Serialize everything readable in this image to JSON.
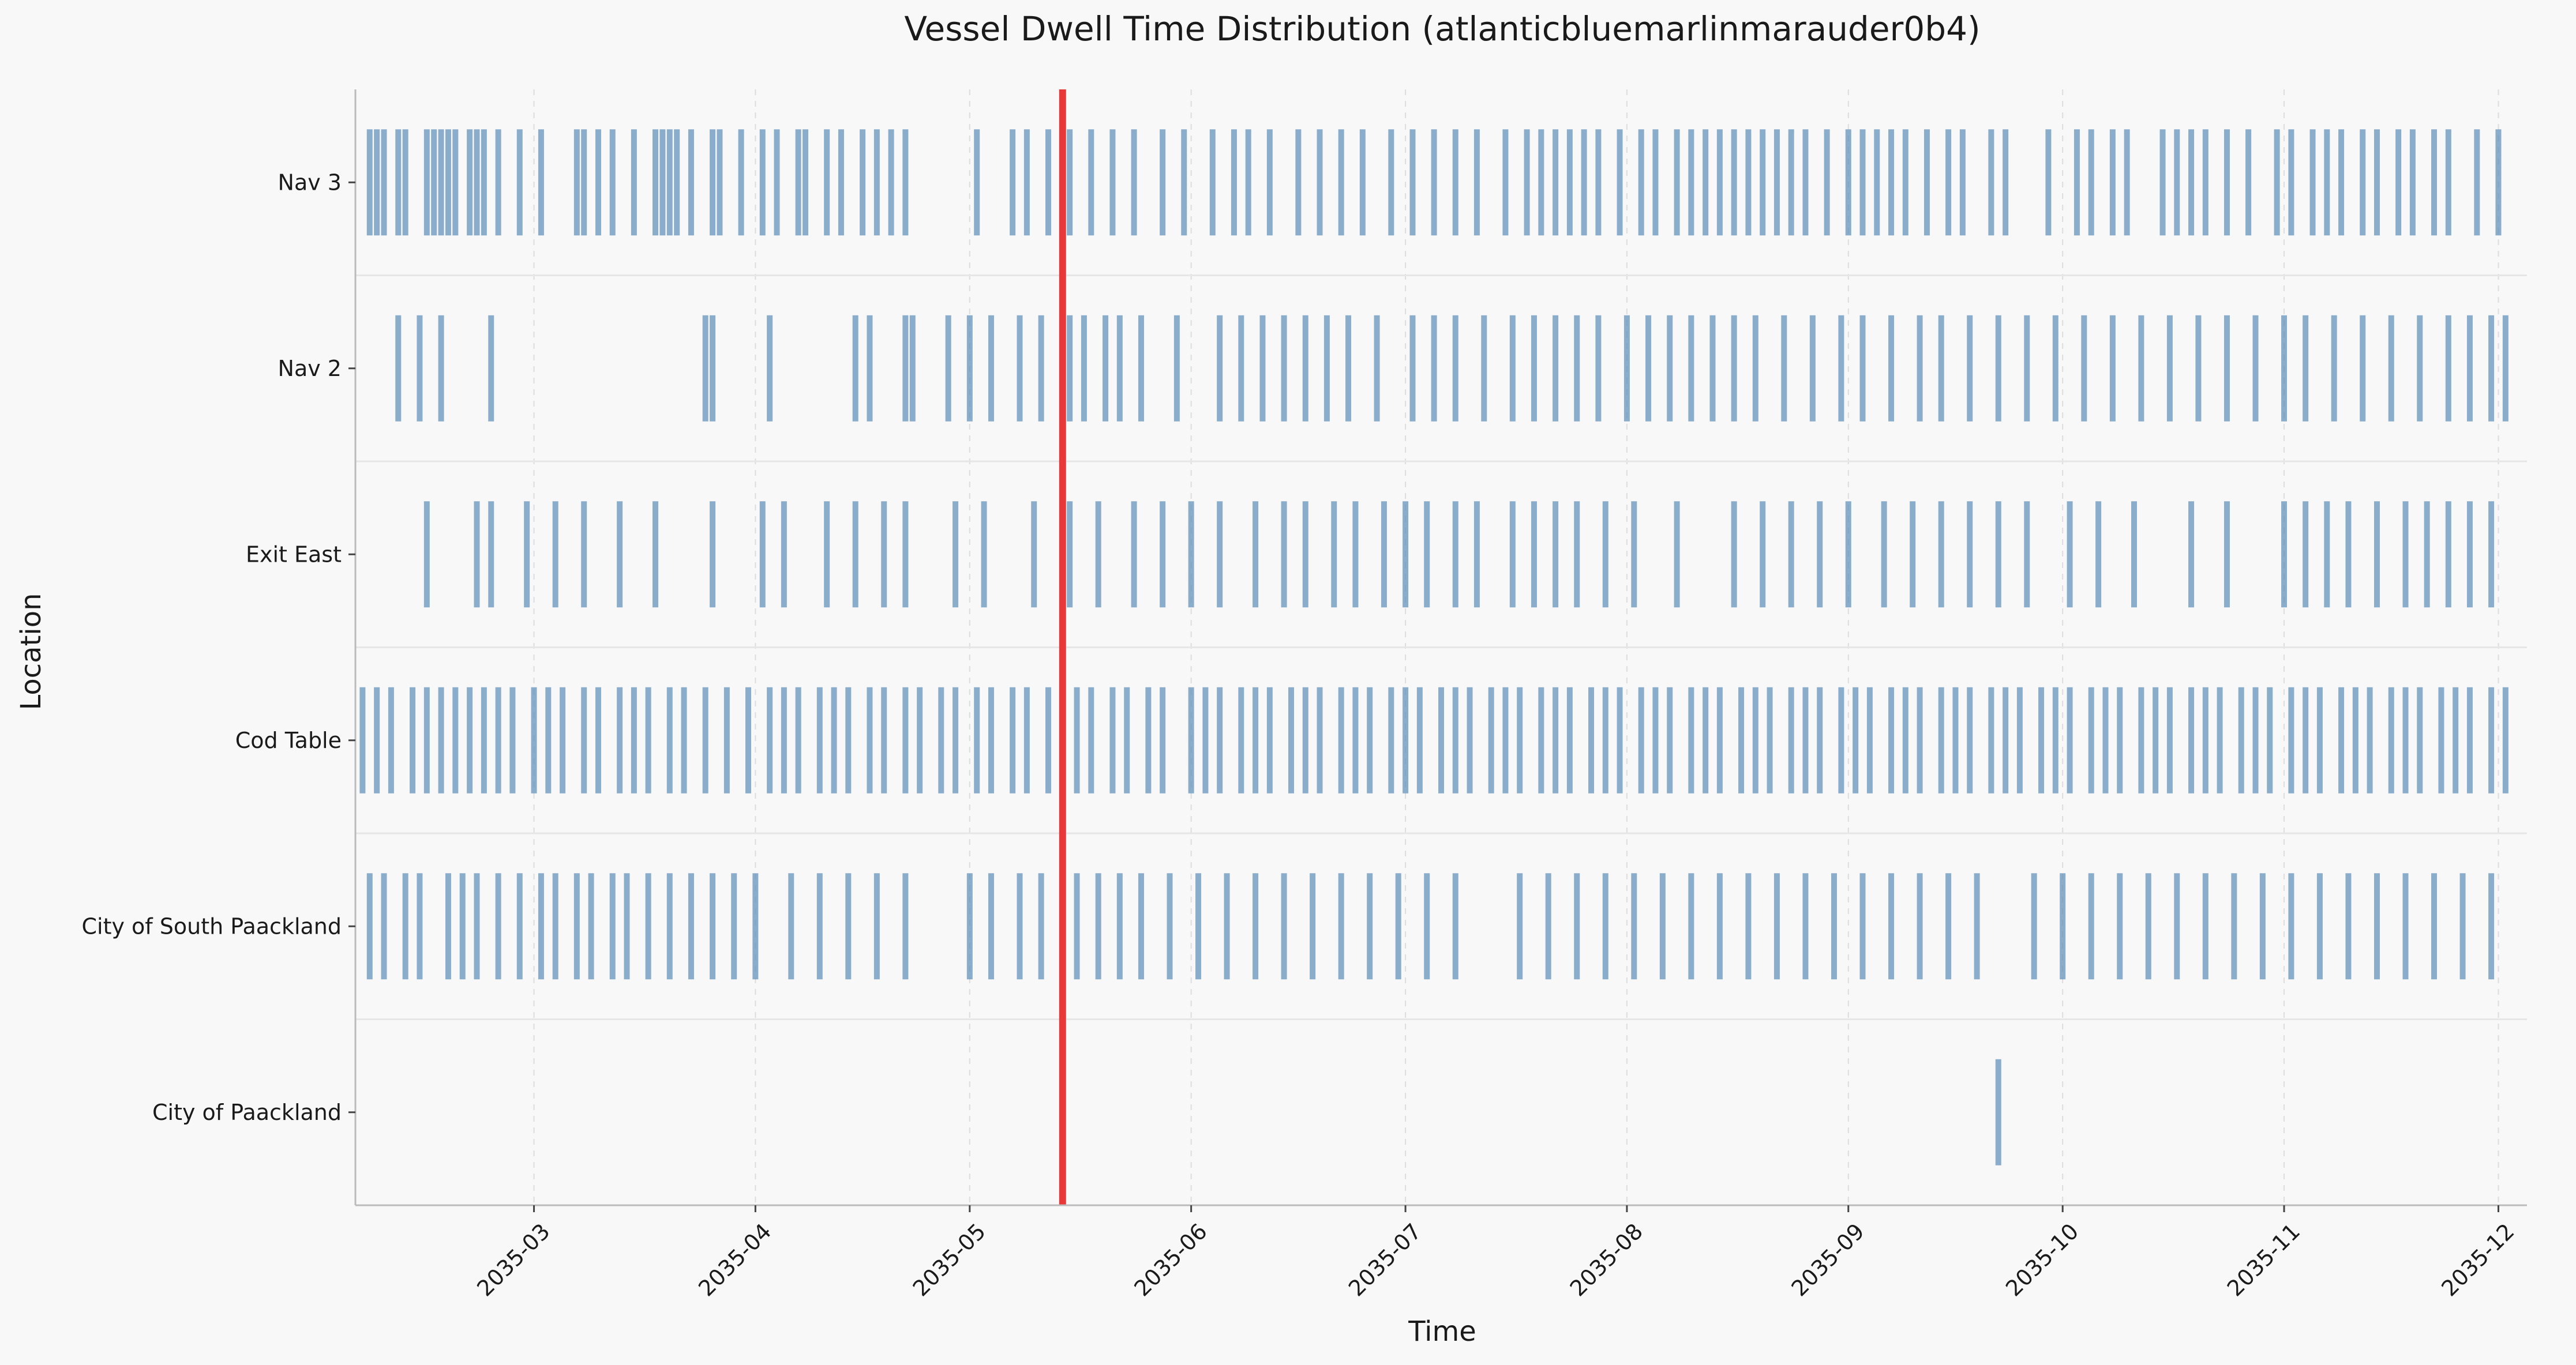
{
  "chart_data": {
    "type": "event-strip",
    "title": "Vessel Dwell Time Distribution (atlanticbluemarlinmarauder0b4)",
    "xlabel": "Time",
    "ylabel": "Location",
    "x_range": [
      "2035-02-04",
      "2035-12-05"
    ],
    "x_ticks": [
      "2035-03",
      "2035-04",
      "2035-05",
      "2035-06",
      "2035-07",
      "2035-08",
      "2035-09",
      "2035-10",
      "2035-11",
      "2035-12"
    ],
    "categories": [
      "Nav 3",
      "Nav 2",
      "Exit East",
      "Cod Table",
      "City of South Paackland",
      "City of Paackland"
    ],
    "marker_date": "2035-05-14",
    "colors": {
      "event": "#5b8db8",
      "marker": "#e8393a",
      "grid": "#dddddd",
      "background": "#f8f8f8"
    },
    "grid": true,
    "series": [
      {
        "category": "Nav 3",
        "events": [
          "2035-02-06",
          "2035-02-07",
          "2035-02-08",
          "2035-02-10",
          "2035-02-11",
          "2035-02-14",
          "2035-02-15",
          "2035-02-16",
          "2035-02-17",
          "2035-02-18",
          "2035-02-20",
          "2035-02-21",
          "2035-02-22",
          "2035-02-24",
          "2035-02-27",
          "2035-03-02",
          "2035-03-07",
          "2035-03-08",
          "2035-03-10",
          "2035-03-12",
          "2035-03-15",
          "2035-03-18",
          "2035-03-19",
          "2035-03-20",
          "2035-03-21",
          "2035-03-23",
          "2035-03-26",
          "2035-03-27",
          "2035-03-30",
          "2035-04-02",
          "2035-04-04",
          "2035-04-07",
          "2035-04-08",
          "2035-04-11",
          "2035-04-13",
          "2035-04-16",
          "2035-04-18",
          "2035-04-20",
          "2035-04-22",
          "2035-05-02",
          "2035-05-07",
          "2035-05-09",
          "2035-05-12",
          "2035-05-15",
          "2035-05-18",
          "2035-05-21",
          "2035-05-24",
          "2035-05-28",
          "2035-05-31",
          "2035-06-04",
          "2035-06-07",
          "2035-06-09",
          "2035-06-12",
          "2035-06-16",
          "2035-06-19",
          "2035-06-22",
          "2035-06-25",
          "2035-06-29",
          "2035-07-02",
          "2035-07-05",
          "2035-07-08",
          "2035-07-11",
          "2035-07-15",
          "2035-07-18",
          "2035-07-20",
          "2035-07-22",
          "2035-07-24",
          "2035-07-26",
          "2035-07-28",
          "2035-07-31",
          "2035-08-03",
          "2035-08-05",
          "2035-08-08",
          "2035-08-10",
          "2035-08-12",
          "2035-08-14",
          "2035-08-16",
          "2035-08-18",
          "2035-08-20",
          "2035-08-22",
          "2035-08-24",
          "2035-08-26",
          "2035-08-29",
          "2035-09-01",
          "2035-09-03",
          "2035-09-05",
          "2035-09-07",
          "2035-09-09",
          "2035-09-12",
          "2035-09-15",
          "2035-09-17",
          "2035-09-21",
          "2035-09-23",
          "2035-09-29",
          "2035-10-03",
          "2035-10-05",
          "2035-10-08",
          "2035-10-10",
          "2035-10-15",
          "2035-10-17",
          "2035-10-19",
          "2035-10-21",
          "2035-10-24",
          "2035-10-27",
          "2035-10-31",
          "2035-11-02",
          "2035-11-05",
          "2035-11-07",
          "2035-11-09",
          "2035-11-12",
          "2035-11-14",
          "2035-11-17",
          "2035-11-19",
          "2035-11-22",
          "2035-11-24",
          "2035-11-28",
          "2035-12-01"
        ]
      },
      {
        "category": "Nav 2",
        "events": [
          "2035-02-10",
          "2035-02-13",
          "2035-02-16",
          "2035-02-23",
          "2035-03-25",
          "2035-03-26",
          "2035-04-03",
          "2035-04-15",
          "2035-04-17",
          "2035-04-22",
          "2035-04-23",
          "2035-04-28",
          "2035-05-01",
          "2035-05-04",
          "2035-05-08",
          "2035-05-11",
          "2035-05-15",
          "2035-05-17",
          "2035-05-20",
          "2035-05-22",
          "2035-05-25",
          "2035-05-30",
          "2035-06-05",
          "2035-06-08",
          "2035-06-11",
          "2035-06-14",
          "2035-06-17",
          "2035-06-20",
          "2035-06-23",
          "2035-06-27",
          "2035-07-02",
          "2035-07-05",
          "2035-07-08",
          "2035-07-12",
          "2035-07-16",
          "2035-07-19",
          "2035-07-22",
          "2035-07-25",
          "2035-07-28",
          "2035-08-01",
          "2035-08-04",
          "2035-08-07",
          "2035-08-10",
          "2035-08-13",
          "2035-08-16",
          "2035-08-19",
          "2035-08-23",
          "2035-08-27",
          "2035-08-31",
          "2035-09-03",
          "2035-09-07",
          "2035-09-11",
          "2035-09-14",
          "2035-09-18",
          "2035-09-22",
          "2035-09-26",
          "2035-09-30",
          "2035-10-04",
          "2035-10-08",
          "2035-10-12",
          "2035-10-16",
          "2035-10-20",
          "2035-10-24",
          "2035-10-28",
          "2035-11-01",
          "2035-11-04",
          "2035-11-08",
          "2035-11-12",
          "2035-11-16",
          "2035-11-20",
          "2035-11-24",
          "2035-11-27",
          "2035-11-30",
          "2035-12-02"
        ]
      },
      {
        "category": "Exit East",
        "events": [
          "2035-02-14",
          "2035-02-21",
          "2035-02-23",
          "2035-02-28",
          "2035-03-04",
          "2035-03-08",
          "2035-03-13",
          "2035-03-18",
          "2035-03-26",
          "2035-04-02",
          "2035-04-05",
          "2035-04-11",
          "2035-04-15",
          "2035-04-19",
          "2035-04-22",
          "2035-04-29",
          "2035-05-03",
          "2035-05-10",
          "2035-05-15",
          "2035-05-19",
          "2035-05-24",
          "2035-05-28",
          "2035-06-01",
          "2035-06-05",
          "2035-06-10",
          "2035-06-14",
          "2035-06-17",
          "2035-06-21",
          "2035-06-24",
          "2035-06-28",
          "2035-07-01",
          "2035-07-04",
          "2035-07-08",
          "2035-07-11",
          "2035-07-16",
          "2035-07-19",
          "2035-07-22",
          "2035-07-25",
          "2035-07-29",
          "2035-08-02",
          "2035-08-08",
          "2035-08-16",
          "2035-08-20",
          "2035-08-24",
          "2035-08-28",
          "2035-09-01",
          "2035-09-06",
          "2035-09-10",
          "2035-09-14",
          "2035-09-18",
          "2035-09-22",
          "2035-09-26",
          "2035-10-02",
          "2035-10-06",
          "2035-10-11",
          "2035-10-19",
          "2035-10-24",
          "2035-11-01",
          "2035-11-04",
          "2035-11-07",
          "2035-11-10",
          "2035-11-14",
          "2035-11-18",
          "2035-11-21",
          "2035-11-24",
          "2035-11-27",
          "2035-11-30"
        ]
      },
      {
        "category": "Cod Table",
        "events": [
          "2035-02-05",
          "2035-02-07",
          "2035-02-09",
          "2035-02-12",
          "2035-02-14",
          "2035-02-16",
          "2035-02-18",
          "2035-02-20",
          "2035-02-22",
          "2035-02-24",
          "2035-02-26",
          "2035-03-01",
          "2035-03-03",
          "2035-03-05",
          "2035-03-08",
          "2035-03-10",
          "2035-03-13",
          "2035-03-15",
          "2035-03-17",
          "2035-03-20",
          "2035-03-22",
          "2035-03-25",
          "2035-03-28",
          "2035-03-31",
          "2035-04-03",
          "2035-04-05",
          "2035-04-07",
          "2035-04-10",
          "2035-04-12",
          "2035-04-14",
          "2035-04-17",
          "2035-04-19",
          "2035-04-22",
          "2035-04-24",
          "2035-04-27",
          "2035-04-29",
          "2035-05-02",
          "2035-05-04",
          "2035-05-07",
          "2035-05-09",
          "2035-05-12",
          "2035-05-16",
          "2035-05-18",
          "2035-05-21",
          "2035-05-23",
          "2035-05-26",
          "2035-05-28",
          "2035-06-01",
          "2035-06-03",
          "2035-06-05",
          "2035-06-08",
          "2035-06-10",
          "2035-06-12",
          "2035-06-15",
          "2035-06-17",
          "2035-06-19",
          "2035-06-22",
          "2035-06-24",
          "2035-06-26",
          "2035-06-29",
          "2035-07-01",
          "2035-07-03",
          "2035-07-06",
          "2035-07-08",
          "2035-07-10",
          "2035-07-13",
          "2035-07-15",
          "2035-07-17",
          "2035-07-20",
          "2035-07-22",
          "2035-07-24",
          "2035-07-27",
          "2035-07-29",
          "2035-07-31",
          "2035-08-03",
          "2035-08-05",
          "2035-08-07",
          "2035-08-10",
          "2035-08-12",
          "2035-08-14",
          "2035-08-17",
          "2035-08-19",
          "2035-08-21",
          "2035-08-24",
          "2035-08-26",
          "2035-08-28",
          "2035-08-31",
          "2035-09-02",
          "2035-09-04",
          "2035-09-07",
          "2035-09-09",
          "2035-09-11",
          "2035-09-14",
          "2035-09-16",
          "2035-09-18",
          "2035-09-21",
          "2035-09-23",
          "2035-09-25",
          "2035-09-28",
          "2035-09-30",
          "2035-10-02",
          "2035-10-05",
          "2035-10-07",
          "2035-10-09",
          "2035-10-12",
          "2035-10-14",
          "2035-10-16",
          "2035-10-19",
          "2035-10-21",
          "2035-10-23",
          "2035-10-26",
          "2035-10-28",
          "2035-10-30",
          "2035-11-02",
          "2035-11-04",
          "2035-11-06",
          "2035-11-09",
          "2035-11-11",
          "2035-11-13",
          "2035-11-16",
          "2035-11-18",
          "2035-11-20",
          "2035-11-23",
          "2035-11-25",
          "2035-11-27",
          "2035-11-30",
          "2035-12-02"
        ]
      },
      {
        "category": "City of South Paackland",
        "events": [
          "2035-02-06",
          "2035-02-08",
          "2035-02-11",
          "2035-02-13",
          "2035-02-17",
          "2035-02-19",
          "2035-02-21",
          "2035-02-24",
          "2035-02-27",
          "2035-03-02",
          "2035-03-04",
          "2035-03-07",
          "2035-03-09",
          "2035-03-12",
          "2035-03-14",
          "2035-03-17",
          "2035-03-20",
          "2035-03-23",
          "2035-03-26",
          "2035-03-29",
          "2035-04-01",
          "2035-04-06",
          "2035-04-10",
          "2035-04-14",
          "2035-04-18",
          "2035-04-22",
          "2035-05-01",
          "2035-05-04",
          "2035-05-08",
          "2035-05-11",
          "2035-05-16",
          "2035-05-19",
          "2035-05-22",
          "2035-05-25",
          "2035-05-29",
          "2035-06-02",
          "2035-06-06",
          "2035-06-10",
          "2035-06-14",
          "2035-06-18",
          "2035-06-22",
          "2035-06-26",
          "2035-06-30",
          "2035-07-04",
          "2035-07-08",
          "2035-07-17",
          "2035-07-21",
          "2035-07-25",
          "2035-07-29",
          "2035-08-02",
          "2035-08-06",
          "2035-08-10",
          "2035-08-14",
          "2035-08-18",
          "2035-08-22",
          "2035-08-26",
          "2035-08-30",
          "2035-09-03",
          "2035-09-07",
          "2035-09-11",
          "2035-09-15",
          "2035-09-19",
          "2035-09-27",
          "2035-10-01",
          "2035-10-05",
          "2035-10-09",
          "2035-10-13",
          "2035-10-17",
          "2035-10-21",
          "2035-10-25",
          "2035-10-29",
          "2035-11-02",
          "2035-11-06",
          "2035-11-10",
          "2035-11-14",
          "2035-11-18",
          "2035-11-22",
          "2035-11-26",
          "2035-11-30"
        ]
      },
      {
        "category": "City of Paackland",
        "events": [
          "2035-09-22"
        ]
      }
    ]
  }
}
